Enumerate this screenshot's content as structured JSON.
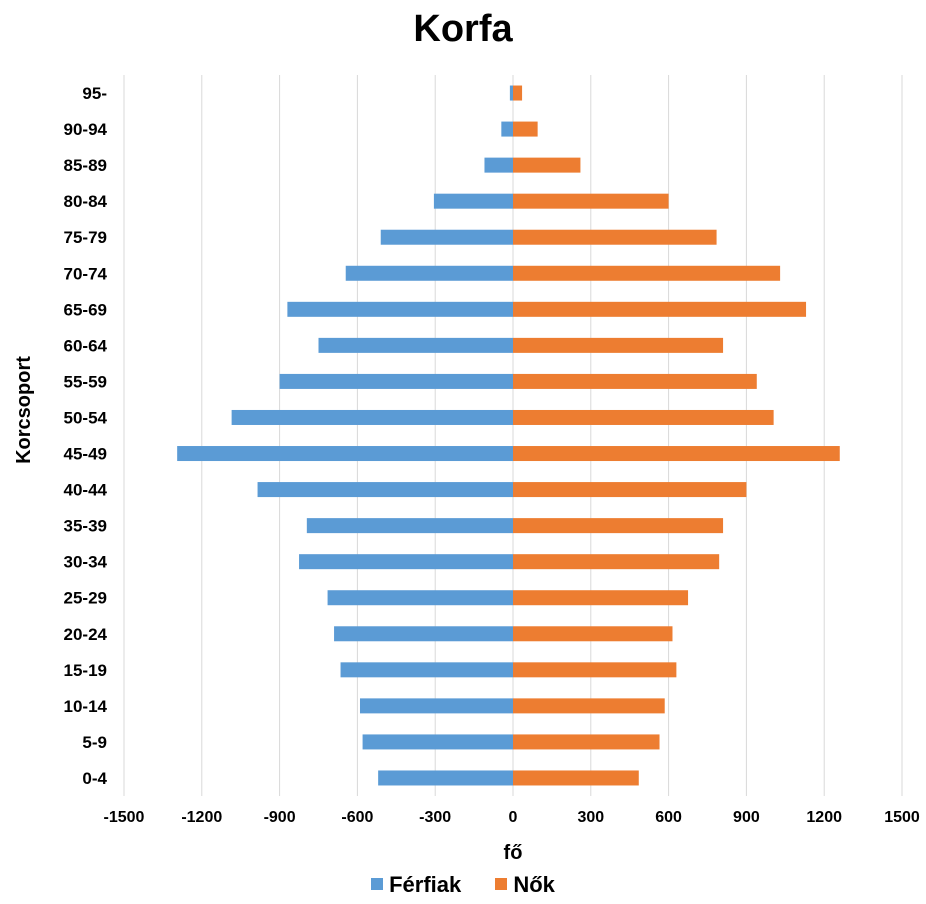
{
  "chart_data": {
    "type": "bar",
    "orientation": "horizontal",
    "title": "Korfa",
    "xlabel": "fő",
    "ylabel": "Korcsoport",
    "xlim": [
      -1500,
      1500
    ],
    "xticks": [
      -1500,
      -1200,
      -900,
      -600,
      -300,
      0,
      300,
      600,
      900,
      1200,
      1500
    ],
    "xtick_labels": [
      "-1500",
      "-1200",
      "-900",
      "-600",
      "-300",
      "0",
      "300",
      "600",
      "900",
      "1200",
      "1500"
    ],
    "grid": "vertical",
    "legend_position": "bottom",
    "categories": [
      "0-4",
      "5-9",
      "10-14",
      "15-19",
      "20-24",
      "25-29",
      "30-34",
      "35-39",
      "40-44",
      "45-49",
      "50-54",
      "55-59",
      "60-64",
      "65-69",
      "70-74",
      "75-79",
      "80-84",
      "85-89",
      "90-94",
      "95-"
    ],
    "series": [
      {
        "name": "Férfiak",
        "color": "#5b9bd5",
        "values": [
          -520,
          -580,
          -590,
          -665,
          -690,
          -715,
          -825,
          -795,
          -985,
          -1295,
          -1085,
          -900,
          -750,
          -870,
          -645,
          -510,
          -305,
          -110,
          -45,
          -12
        ]
      },
      {
        "name": "Nők",
        "color": "#ed7d31",
        "values": [
          485,
          565,
          585,
          630,
          615,
          675,
          795,
          810,
          900,
          1260,
          1005,
          940,
          810,
          1130,
          1030,
          785,
          600,
          260,
          95,
          35
        ]
      }
    ]
  }
}
